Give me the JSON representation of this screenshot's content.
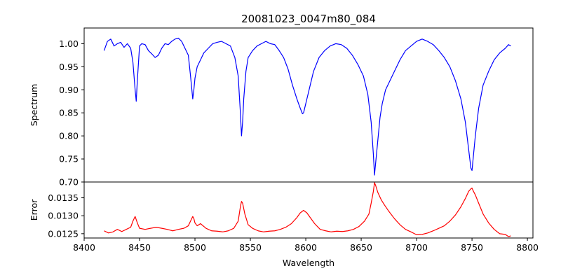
{
  "chart_data": {
    "type": "line",
    "title": "20081023_0047m80_084",
    "xlabel": "Wavelength",
    "xlim": [
      8400,
      8805
    ],
    "xticks": [
      8400,
      8450,
      8500,
      8550,
      8600,
      8650,
      8700,
      8750,
      8800
    ],
    "panels": [
      {
        "name": "spectrum",
        "ylabel": "Spectrum",
        "ylim": [
          0.7,
          1.034
        ],
        "yticks": [
          0.7,
          0.75,
          0.8,
          0.85,
          0.9,
          0.95,
          1.0
        ],
        "ytick_format": 2,
        "series": [
          {
            "name": "Spectrum",
            "color": "#0000ff",
            "x": [
              8418,
              8421,
              8424,
              8427,
              8430,
              8433,
              8436,
              8439,
              8442,
              8444,
              8446,
              8447,
              8448,
              8450,
              8452,
              8455,
              8458,
              8461,
              8464,
              8467,
              8470,
              8473,
              8476,
              8479,
              8482,
              8485,
              8488,
              8491,
              8494,
              8496,
              8498,
              8499,
              8500,
              8502,
              8505,
              8508,
              8512,
              8516,
              8520,
              8524,
              8528,
              8532,
              8536,
              8539,
              8541,
              8542,
              8543,
              8544,
              8546,
              8548,
              8552,
              8556,
              8560,
              8564,
              8568,
              8572,
              8576,
              8580,
              8584,
              8588,
              8592,
              8595,
              8597,
              8598,
              8600,
              8603,
              8607,
              8612,
              8617,
              8622,
              8627,
              8632,
              8637,
              8642,
              8647,
              8652,
              8656,
              8659,
              8661,
              8662,
              8663,
              8665,
              8667,
              8669,
              8672,
              8676,
              8680,
              8685,
              8690,
              8695,
              8700,
              8705,
              8710,
              8715,
              8720,
              8725,
              8730,
              8735,
              8740,
              8744,
              8747,
              8749,
              8750,
              8751,
              8753,
              8756,
              8760,
              8765,
              8770,
              8775,
              8780,
              8783,
              8785
            ],
            "y": [
              0.985,
              1.005,
              1.01,
              0.995,
              1.0,
              1.003,
              0.992,
              1.0,
              0.99,
              0.96,
              0.9,
              0.875,
              0.92,
              0.995,
              1.0,
              0.998,
              0.985,
              0.978,
              0.97,
              0.975,
              0.99,
              1.0,
              0.998,
              1.005,
              1.01,
              1.012,
              1.005,
              0.99,
              0.975,
              0.93,
              0.88,
              0.9,
              0.925,
              0.95,
              0.965,
              0.98,
              0.99,
              1.0,
              1.003,
              1.005,
              1.0,
              0.995,
              0.97,
              0.93,
              0.85,
              0.8,
              0.83,
              0.88,
              0.94,
              0.97,
              0.985,
              0.995,
              1.0,
              1.005,
              1.0,
              0.998,
              0.985,
              0.97,
              0.945,
              0.91,
              0.88,
              0.86,
              0.848,
              0.85,
              0.87,
              0.9,
              0.94,
              0.97,
              0.985,
              0.995,
              1.0,
              0.998,
              0.99,
              0.975,
              0.955,
              0.93,
              0.89,
              0.83,
              0.76,
              0.715,
              0.74,
              0.79,
              0.84,
              0.87,
              0.9,
              0.92,
              0.94,
              0.965,
              0.985,
              0.995,
              1.005,
              1.01,
              1.005,
              0.998,
              0.985,
              0.97,
              0.95,
              0.92,
              0.88,
              0.83,
              0.77,
              0.73,
              0.725,
              0.75,
              0.8,
              0.86,
              0.91,
              0.94,
              0.965,
              0.98,
              0.99,
              0.998,
              0.995
            ]
          }
        ]
      },
      {
        "name": "error",
        "ylabel": "Error",
        "ylim": [
          0.01238,
          0.01394
        ],
        "yticks": [
          0.0125,
          0.013,
          0.0135
        ],
        "ytick_format": 4,
        "series": [
          {
            "name": "Error",
            "color": "#ff0000",
            "x": [
              8418,
              8422,
              8426,
              8430,
              8434,
              8438,
              8442,
              8444,
              8446,
              8448,
              8450,
              8455,
              8460,
              8465,
              8470,
              8475,
              8480,
              8485,
              8490,
              8494,
              8496,
              8498,
              8499,
              8500,
              8502,
              8505,
              8510,
              8515,
              8520,
              8525,
              8530,
              8535,
              8539,
              8541,
              8542,
              8543,
              8545,
              8548,
              8552,
              8557,
              8562,
              8567,
              8572,
              8577,
              8582,
              8587,
              8592,
              8595,
              8598,
              8601,
              8604,
              8608,
              8613,
              8618,
              8623,
              8628,
              8633,
              8638,
              8643,
              8648,
              8653,
              8657,
              8659,
              8661,
              8662,
              8663,
              8665,
              8668,
              8671,
              8675,
              8680,
              8685,
              8690,
              8695,
              8700,
              8705,
              8710,
              8715,
              8720,
              8725,
              8730,
              8735,
              8740,
              8744,
              8747,
              8749,
              8750,
              8751,
              8753,
              8756,
              8760,
              8765,
              8770,
              8775,
              8780,
              8783,
              8785
            ],
            "y": [
              0.01258,
              0.01252,
              0.01255,
              0.01262,
              0.01256,
              0.01262,
              0.01268,
              0.01285,
              0.01298,
              0.0128,
              0.01265,
              0.01262,
              0.01265,
              0.01268,
              0.01265,
              0.01262,
              0.01258,
              0.01262,
              0.01265,
              0.01272,
              0.01285,
              0.01298,
              0.01292,
              0.0128,
              0.01272,
              0.01278,
              0.01265,
              0.01258,
              0.01257,
              0.01255,
              0.01258,
              0.01265,
              0.01285,
              0.01325,
              0.0134,
              0.01335,
              0.01305,
              0.01275,
              0.01265,
              0.01258,
              0.01255,
              0.01257,
              0.01258,
              0.01262,
              0.01268,
              0.01278,
              0.01295,
              0.01308,
              0.01315,
              0.01308,
              0.01295,
              0.01278,
              0.01262,
              0.01258,
              0.01255,
              0.01257,
              0.01256,
              0.01258,
              0.01262,
              0.0127,
              0.01285,
              0.01305,
              0.01335,
              0.01368,
              0.01392,
              0.01385,
              0.01365,
              0.01345,
              0.0133,
              0.01312,
              0.01292,
              0.01275,
              0.01262,
              0.01255,
              0.01247,
              0.01248,
              0.01252,
              0.01258,
              0.01265,
              0.01272,
              0.01285,
              0.01302,
              0.01325,
              0.01348,
              0.01368,
              0.01375,
              0.01377,
              0.0137,
              0.01358,
              0.01335,
              0.01305,
              0.0128,
              0.01262,
              0.0125,
              0.01248,
              0.01242,
              0.01244
            ]
          }
        ]
      }
    ]
  }
}
